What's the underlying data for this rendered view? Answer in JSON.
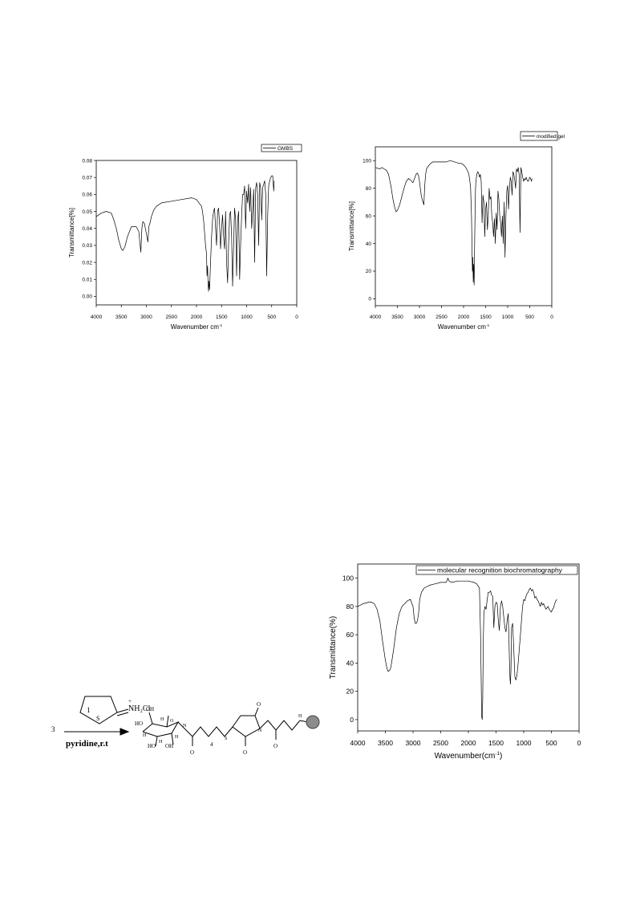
{
  "chart_data": [
    {
      "type": "line",
      "legend": "GMBS",
      "legend_position": "top-right",
      "xlabel": "Wavenumber cm",
      "xlabel_sup": "-1",
      "ylabel": "Transmittance[%]",
      "xlim": [
        4000,
        0
      ],
      "ylim": [
        -0.005,
        0.08
      ],
      "xticks": [
        "4000",
        "3500",
        "3000",
        "2500",
        "2000",
        "1500",
        "1000",
        "500",
        "0"
      ],
      "yticks": [
        "0.00",
        "0.01",
        "0.02",
        "0.03",
        "0.04",
        "0.05",
        "0.06",
        "0.07",
        "0.08"
      ],
      "series": [
        {
          "x": [
            4000,
            3900,
            3800,
            3700,
            3650,
            3600,
            3550,
            3500,
            3470,
            3430,
            3380,
            3300,
            3200,
            3150,
            3110,
            3090,
            3070,
            3040,
            3000,
            2970,
            2950,
            2930,
            2900,
            2850,
            2800,
            2700,
            2500,
            2300,
            2100,
            2000,
            1950,
            1900,
            1880,
            1860,
            1840,
            1820,
            1800,
            1790,
            1780,
            1770,
            1760,
            1750,
            1740,
            1730,
            1720,
            1700,
            1680,
            1660,
            1640,
            1620,
            1600,
            1580,
            1560,
            1540,
            1520,
            1500,
            1480,
            1460,
            1440,
            1420,
            1400,
            1380,
            1360,
            1340,
            1320,
            1300,
            1280,
            1260,
            1240,
            1220,
            1200,
            1180,
            1160,
            1140,
            1120,
            1100,
            1080,
            1060,
            1040,
            1020,
            1000,
            980,
            960,
            940,
            920,
            900,
            880,
            860,
            840,
            820,
            800,
            780,
            760,
            740,
            720,
            700,
            680,
            660,
            640,
            620,
            600,
            580,
            560,
            540,
            520,
            500,
            480,
            460,
            450
          ],
          "y": [
            0.047,
            0.049,
            0.05,
            0.049,
            0.045,
            0.04,
            0.033,
            0.028,
            0.027,
            0.029,
            0.035,
            0.041,
            0.041,
            0.038,
            0.026,
            0.04,
            0.044,
            0.043,
            0.037,
            0.032,
            0.041,
            0.043,
            0.047,
            0.051,
            0.053,
            0.055,
            0.056,
            0.057,
            0.058,
            0.057,
            0.055,
            0.053,
            0.05,
            0.045,
            0.038,
            0.03,
            0.025,
            0.012,
            0.018,
            0.008,
            0.003,
            0.009,
            0.004,
            0.012,
            0.02,
            0.035,
            0.045,
            0.05,
            0.052,
            0.04,
            0.03,
            0.05,
            0.052,
            0.042,
            0.028,
            0.04,
            0.048,
            0.035,
            0.028,
            0.05,
            0.02,
            0.008,
            0.03,
            0.048,
            0.05,
            0.035,
            0.006,
            0.03,
            0.052,
            0.045,
            0.012,
            0.045,
            0.05,
            0.01,
            0.03,
            0.048,
            0.06,
            0.06,
            0.065,
            0.04,
            0.062,
            0.055,
            0.066,
            0.05,
            0.064,
            0.04,
            0.05,
            0.063,
            0.02,
            0.064,
            0.067,
            0.06,
            0.03,
            0.067,
            0.064,
            0.045,
            0.064,
            0.066,
            0.068,
            0.06,
            0.012,
            0.048,
            0.065,
            0.068,
            0.07,
            0.071,
            0.071,
            0.062,
            0.068
          ]
        }
      ]
    },
    {
      "type": "line",
      "legend": "modified gel",
      "legend_position": "top-right",
      "xlabel": "Wavenumber cm",
      "xlabel_sup": "-1",
      "ylabel": "Transmittance[%]",
      "xlim": [
        4000,
        0
      ],
      "ylim": [
        -5,
        110
      ],
      "xticks": [
        "4000",
        "3500",
        "3000",
        "2500",
        "2000",
        "1500",
        "1000",
        "500",
        "0"
      ],
      "yticks": [
        "0",
        "20",
        "40",
        "60",
        "80",
        "100"
      ],
      "series": [
        {
          "x": [
            4000,
            3900,
            3850,
            3800,
            3750,
            3700,
            3650,
            3600,
            3560,
            3530,
            3500,
            3450,
            3400,
            3350,
            3300,
            3250,
            3200,
            3150,
            3100,
            3080,
            3050,
            3020,
            3000,
            2980,
            2960,
            2940,
            2920,
            2900,
            2880,
            2860,
            2840,
            2800,
            2750,
            2700,
            2600,
            2500,
            2400,
            2300,
            2200,
            2100,
            2050,
            2000,
            1950,
            1900,
            1880,
            1860,
            1840,
            1820,
            1800,
            1790,
            1780,
            1770,
            1760,
            1750,
            1740,
            1730,
            1720,
            1700,
            1680,
            1660,
            1640,
            1620,
            1600,
            1580,
            1560,
            1540,
            1520,
            1500,
            1480,
            1460,
            1440,
            1420,
            1400,
            1380,
            1360,
            1340,
            1320,
            1300,
            1280,
            1260,
            1240,
            1220,
            1200,
            1180,
            1160,
            1140,
            1120,
            1100,
            1080,
            1060,
            1040,
            1020,
            1000,
            980,
            960,
            940,
            920,
            900,
            880,
            860,
            840,
            820,
            800,
            780,
            760,
            740,
            720,
            700,
            680,
            660,
            640,
            620,
            600,
            580,
            560,
            540,
            520,
            500,
            480,
            460,
            450
          ],
          "y": [
            95,
            94,
            95,
            94,
            93,
            90,
            82,
            72,
            66,
            63,
            64,
            68,
            74,
            80,
            85,
            87,
            86,
            84,
            88,
            90,
            91,
            89,
            85,
            80,
            75,
            72,
            70,
            68,
            82,
            90,
            94,
            96,
            98,
            99,
            99,
            99,
            99,
            100,
            99,
            98,
            98,
            97,
            95,
            92,
            90,
            86,
            80,
            60,
            20,
            30,
            12,
            25,
            10,
            40,
            60,
            80,
            85,
            90,
            92,
            91,
            88,
            90,
            85,
            55,
            75,
            70,
            45,
            65,
            70,
            50,
            60,
            80,
            72,
            74,
            60,
            55,
            45,
            58,
            40,
            62,
            50,
            78,
            72,
            60,
            55,
            45,
            60,
            40,
            70,
            30,
            60,
            78,
            82,
            65,
            80,
            88,
            85,
            75,
            92,
            90,
            86,
            80,
            94,
            92,
            95,
            90,
            48,
            95,
            92,
            88,
            85,
            87,
            86,
            88,
            86,
            85,
            86,
            88,
            87,
            85,
            87
          ]
        }
      ]
    },
    {
      "type": "line",
      "legend": "molecular recognition biochromatography",
      "legend_position": "top-right",
      "xlabel": "Wavenumber(cm",
      "xlabel_sup": "-1",
      "xlabel_suffix": ")",
      "ylabel": "Transmittance(%)",
      "xlim": [
        4000,
        0
      ],
      "ylim": [
        -8,
        110
      ],
      "xticks": [
        "4000",
        "3500",
        "3000",
        "2500",
        "2000",
        "1500",
        "1000",
        "500",
        "0"
      ],
      "yticks": [
        "0",
        "20",
        "40",
        "60",
        "80",
        "100"
      ],
      "series": [
        {
          "x": [
            4000,
            3900,
            3800,
            3750,
            3700,
            3650,
            3600,
            3550,
            3500,
            3470,
            3450,
            3420,
            3400,
            3350,
            3300,
            3250,
            3200,
            3100,
            3050,
            3000,
            2980,
            2960,
            2940,
            2920,
            2900,
            2880,
            2850,
            2800,
            2700,
            2600,
            2500,
            2400,
            2370,
            2350,
            2300,
            2200,
            2100,
            2000,
            1900,
            1850,
            1800,
            1780,
            1760,
            1750,
            1740,
            1730,
            1720,
            1700,
            1680,
            1660,
            1640,
            1620,
            1600,
            1580,
            1560,
            1540,
            1520,
            1500,
            1480,
            1460,
            1440,
            1420,
            1400,
            1380,
            1360,
            1340,
            1320,
            1300,
            1280,
            1260,
            1250,
            1240,
            1230,
            1220,
            1200,
            1180,
            1160,
            1140,
            1120,
            1100,
            1080,
            1060,
            1040,
            1020,
            1000,
            980,
            960,
            940,
            920,
            900,
            880,
            860,
            840,
            820,
            800,
            780,
            760,
            740,
            720,
            700,
            680,
            660,
            640,
            620,
            600,
            580,
            560,
            540,
            520,
            500,
            480,
            460,
            440,
            420,
            400
          ],
          "y": [
            80,
            82,
            83,
            83,
            82,
            78,
            70,
            55,
            42,
            36,
            34,
            35,
            37,
            50,
            65,
            75,
            80,
            84,
            85,
            80,
            72,
            68,
            68,
            70,
            75,
            85,
            90,
            93,
            95,
            96,
            97,
            97,
            100,
            98,
            97,
            98,
            98,
            98,
            97,
            96,
            93,
            60,
            2,
            0,
            15,
            55,
            75,
            80,
            78,
            85,
            90,
            90,
            91,
            88,
            87,
            65,
            80,
            83,
            82,
            70,
            63,
            80,
            84,
            80,
            72,
            65,
            62,
            70,
            75,
            45,
            30,
            25,
            35,
            65,
            68,
            50,
            30,
            28,
            32,
            40,
            50,
            60,
            70,
            80,
            85,
            84,
            87,
            89,
            90,
            92,
            93,
            91,
            92,
            90,
            86,
            87,
            85,
            84,
            82,
            80,
            83,
            81,
            82,
            80,
            78,
            79,
            80,
            78,
            77,
            76,
            78,
            79,
            82,
            84,
            85
          ]
        }
      ]
    }
  ],
  "scheme": {
    "reagent_number": "3",
    "condition": "pyridine,r.t",
    "reagent_ring_atom": "S",
    "reagent_label_1": "1",
    "reagent_salt": "NH₂Cl",
    "reagent_charge": "+",
    "product_number": "4",
    "hydroxyls": [
      "OH",
      "HO",
      "HO",
      "OH"
    ],
    "hydrogens": [
      "H",
      "H",
      "H",
      "H"
    ],
    "ring_atoms": [
      "O",
      "N",
      "S",
      "N",
      "H",
      "O",
      "O",
      "O",
      "O"
    ]
  }
}
